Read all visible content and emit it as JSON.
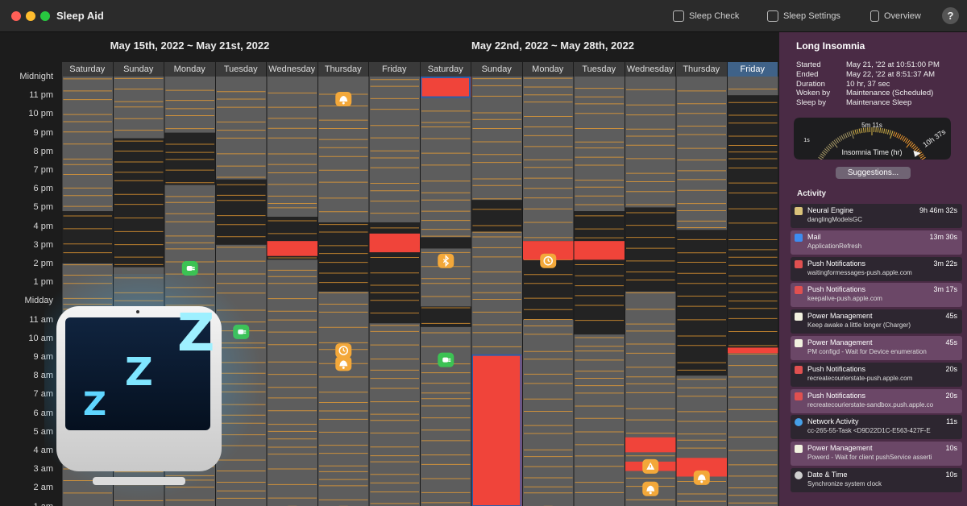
{
  "window": {
    "title": "Sleep Aid"
  },
  "toolbar": {
    "sleep_check": "Sleep Check",
    "sleep_settings": "Sleep Settings",
    "overview": "Overview",
    "help": "?"
  },
  "weeks": [
    "May 15th, 2022 ~ May 21st, 2022",
    "May 22nd, 2022 ~ May 28th, 2022"
  ],
  "days": [
    "Saturday",
    "Sunday",
    "Monday",
    "Tuesday",
    "Wednesday",
    "Thursday",
    "Friday",
    "Saturday",
    "Sunday",
    "Monday",
    "Tuesday",
    "Wednesday",
    "Thursday",
    "Friday"
  ],
  "selected_day": 13,
  "hours": [
    "Midnight",
    "11 pm",
    "10 pm",
    "9 pm",
    "8 pm",
    "7 pm",
    "6 pm",
    "5 pm",
    "4 pm",
    "3 pm",
    "2 pm",
    "1 pm",
    "Midday",
    "11 am",
    "10 am",
    "9 am",
    "8 am",
    "7 am",
    "6 am",
    "5 am",
    "4 am",
    "3 am",
    "2 am",
    "1 am"
  ],
  "colors": {
    "sleep": "#232323",
    "awake": "#5d5d5d",
    "wake_line": "#f0a032",
    "insomnia": "#f0443a",
    "selection": "#2e5ea8",
    "orange_event": "#f3a83a",
    "green_event": "#3cc253"
  },
  "day_data": [
    {
      "awake": [
        [
          -1,
          7.2
        ],
        [
          10.0,
          24
        ]
      ],
      "insomnia": []
    },
    {
      "awake": [
        [
          -1,
          3.3
        ],
        [
          10.2,
          24
        ]
      ],
      "insomnia": []
    },
    {
      "awake": [
        [
          -1,
          3.0
        ],
        [
          5.8,
          24
        ]
      ],
      "insomnia": []
    },
    {
      "awake": [
        [
          -1,
          5.5
        ],
        [
          9.0,
          24
        ]
      ],
      "insomnia": []
    },
    {
      "awake": [
        [
          -1,
          7.5
        ],
        [
          9.8,
          24
        ]
      ],
      "insomnia": [
        [
          8.8,
          9.6
        ]
      ]
    },
    {
      "awake": [
        [
          -1,
          7.8
        ],
        [
          11.5,
          24
        ]
      ],
      "insomnia": []
    },
    {
      "awake": [
        [
          -1,
          7.8
        ],
        [
          13.2,
          24
        ]
      ],
      "insomnia": [
        [
          8.4,
          9.4
        ]
      ]
    },
    {
      "awake": [
        [
          -1,
          8.6
        ],
        [
          9.2,
          12.3
        ],
        [
          13.4,
          24
        ]
      ],
      "insomnia": [
        [
          -1,
          1.1
        ]
      ]
    },
    {
      "awake": [
        [
          -1,
          6.6
        ],
        [
          8.3,
          24
        ]
      ],
      "insomnia": [
        [
          14.9,
          24
        ]
      ]
    },
    {
      "awake": [
        [
          -1,
          8.8
        ],
        [
          13.0,
          24
        ]
      ],
      "insomnia": [
        [
          8.8,
          9.8
        ]
      ]
    },
    {
      "awake": [
        [
          -1,
          7.2
        ],
        [
          13.8,
          24
        ]
      ],
      "insomnia": [
        [
          8.8,
          9.8
        ]
      ]
    },
    {
      "awake": [
        [
          -1,
          7.0
        ],
        [
          11.5,
          24
        ]
      ],
      "insomnia": [
        [
          19.3,
          20.1
        ],
        [
          20.6,
          21.1
        ]
      ]
    },
    {
      "awake": [
        [
          -1,
          8.2
        ],
        [
          16.0,
          24
        ]
      ],
      "insomnia": [
        [
          20.4,
          21.4
        ]
      ]
    },
    {
      "awake": [
        [
          -1,
          1.0
        ],
        [
          14.8,
          24
        ]
      ],
      "insomnia": [
        [
          14.5,
          14.8
        ]
      ]
    }
  ],
  "events": [
    {
      "day": 5,
      "hour": 0.95,
      "kind": "orange",
      "icon": "bell"
    },
    {
      "day": 2,
      "hour": 10.0,
      "kind": "green",
      "icon": "plug"
    },
    {
      "day": 7,
      "hour": 9.6,
      "kind": "orange",
      "icon": "bluetooth"
    },
    {
      "day": 9,
      "hour": 9.6,
      "kind": "orange",
      "icon": "clock"
    },
    {
      "day": 3,
      "hour": 13.4,
      "kind": "green",
      "icon": "plug"
    },
    {
      "day": 5,
      "hour": 14.4,
      "kind": "orange",
      "icon": "clock"
    },
    {
      "day": 5,
      "hour": 15.1,
      "kind": "orange",
      "icon": "bell"
    },
    {
      "day": 7,
      "hour": 14.9,
      "kind": "green",
      "icon": "plug"
    },
    {
      "day": 11,
      "hour": 20.6,
      "kind": "orange",
      "icon": "alert"
    },
    {
      "day": 12,
      "hour": 21.2,
      "kind": "orange",
      "icon": "bell"
    },
    {
      "day": 11,
      "hour": 21.8,
      "kind": "orange",
      "icon": "bell"
    },
    {
      "day": 4,
      "hour": 23.1,
      "kind": "orange",
      "icon": "bell"
    },
    {
      "day": 5,
      "hour": 23.1,
      "kind": "orange",
      "icon": "bell"
    },
    {
      "day": 9,
      "hour": 23.1,
      "kind": "orange",
      "icon": "bell"
    }
  ],
  "panel": {
    "title": "Long Insomnia",
    "rows": [
      {
        "key": "Started",
        "value": "May 21, '22 at 10:51:00 PM"
      },
      {
        "key": "Ended",
        "value": "May 22, '22 at 8:51:37 AM"
      },
      {
        "key": "Duration",
        "value": "10 hr, 37 sec"
      },
      {
        "key": "Woken by",
        "value": "Maintenance (Scheduled)"
      },
      {
        "key": "Sleep by",
        "value": "Maintenance Sleep"
      }
    ],
    "gauge": {
      "label": "Insomnia Time (hr)",
      "min_label": "1s",
      "mid_label": "5m 11s",
      "max_label": "10h 37s",
      "fraction": 0.95
    },
    "suggestions": "Suggestions...",
    "activity_title": "Activity",
    "activity": [
      {
        "name": "Neural Engine",
        "detail": "danglingModelsGC",
        "time": "9h 46m 32s",
        "icon": "gear-icon",
        "icon_color": "#d9c27a",
        "bg": "#2d2630"
      },
      {
        "name": "Mail",
        "detail": "ApplicationRefresh",
        "time": "13m 30s",
        "icon": "mail-icon",
        "icon_color": "#3d8cf0",
        "bg": "#6b4767"
      },
      {
        "name": "Push Notifications",
        "detail": "waitingformessages-push.apple.com",
        "time": "3m 22s",
        "icon": "bell-icon",
        "icon_color": "#e05050",
        "bg": "#2d2630"
      },
      {
        "name": "Push Notifications",
        "detail": "keepalive-push.apple.com",
        "time": "3m 17s",
        "icon": "bell-icon",
        "icon_color": "#e05050",
        "bg": "#6b4767"
      },
      {
        "name": "Power Management",
        "detail": "Keep awake a little longer (Charger)",
        "time": "45s",
        "icon": "bulb-icon",
        "icon_color": "#f2f2e0",
        "bg": "#2d2630"
      },
      {
        "name": "Power Management",
        "detail": "PM configd - Wait for Device enumeration",
        "time": "45s",
        "icon": "bulb-icon",
        "icon_color": "#f2f2e0",
        "bg": "#6b4767"
      },
      {
        "name": "Push Notifications",
        "detail": "recreatecourierstate-push.apple.com",
        "time": "20s",
        "icon": "bell-icon",
        "icon_color": "#e05050",
        "bg": "#2d2630"
      },
      {
        "name": "Push Notifications",
        "detail": "recreatecourierstate-sandbox.push.apple.co",
        "time": "20s",
        "icon": "bell-icon",
        "icon_color": "#e05050",
        "bg": "#6b4767"
      },
      {
        "name": "Network Activity",
        "detail": "cc-265-55-Task <D9D22D1C-E563-427F-E",
        "time": "11s",
        "icon": "globe-icon",
        "icon_color": "#46a0e8",
        "bg": "#2d2630"
      },
      {
        "name": "Power Management",
        "detail": "Powerd - Wait for client pushService asserti",
        "time": "10s",
        "icon": "bulb-icon",
        "icon_color": "#f2f2e0",
        "bg": "#6b4767"
      },
      {
        "name": "Date & Time",
        "detail": "Synchronize system clock",
        "time": "10s",
        "icon": "clock-icon",
        "icon_color": "#cfcfcf",
        "bg": "#2d2630"
      }
    ]
  },
  "overlay": {
    "icon": "sleep-aid-app-icon",
    "glyph": "Z"
  }
}
